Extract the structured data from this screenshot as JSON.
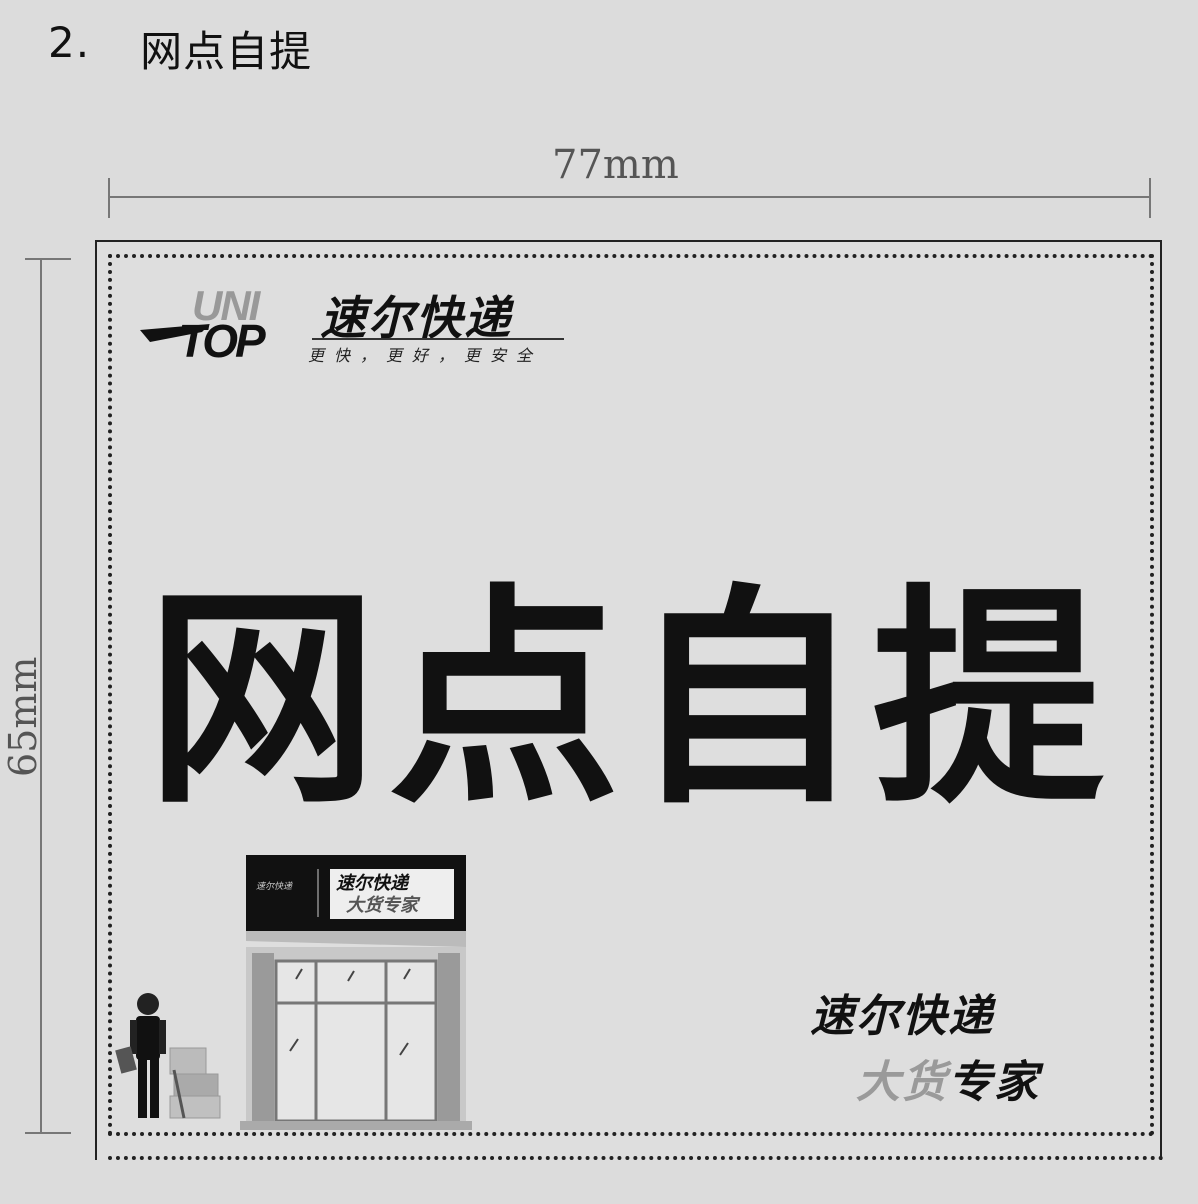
{
  "heading": {
    "number": "2.",
    "title": "网点自提"
  },
  "dimensions": {
    "width_label": "77mm",
    "height_label": "65mm"
  },
  "brand": {
    "logo_uni": "UNI",
    "logo_top": "TOP",
    "name": "速尔快递",
    "slogan": "更快，更好，更安全"
  },
  "main_title": "网点自提",
  "tagline": {
    "line1": "速尔快递",
    "line2_part1": "大货",
    "line2_part2": "专家"
  },
  "store_sign": {
    "small": "速尔快递",
    "line1": "速尔快递",
    "line2": "大货专家"
  }
}
